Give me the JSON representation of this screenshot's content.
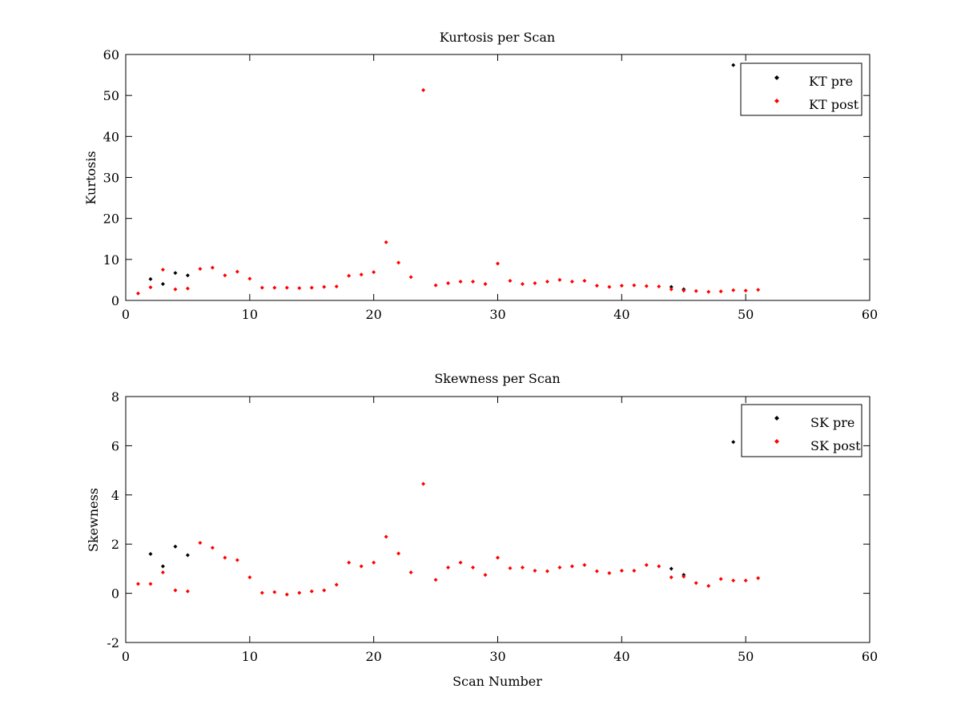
{
  "chart_data": [
    {
      "type": "scatter",
      "title": "Kurtosis per Scan",
      "xlabel": "",
      "ylabel": "Kurtosis",
      "xlim": [
        0,
        60
      ],
      "ylim": [
        0,
        60
      ],
      "xticks": [
        0,
        10,
        20,
        30,
        40,
        50,
        60
      ],
      "yticks": [
        0,
        10,
        20,
        30,
        40,
        50,
        60
      ],
      "grid": false,
      "legend_position": "top-right",
      "series": [
        {
          "name": "KT pre",
          "color": "#000000",
          "x": [
            2,
            3,
            4,
            5,
            44,
            45,
            49
          ],
          "y": [
            5.2,
            4.0,
            6.7,
            6.1,
            3.3,
            2.7,
            57.4
          ]
        },
        {
          "name": "KT post",
          "color": "#ff0000",
          "x": [
            1,
            2,
            3,
            4,
            5,
            6,
            7,
            8,
            9,
            10,
            11,
            12,
            13,
            14,
            15,
            16,
            17,
            18,
            19,
            20,
            21,
            22,
            23,
            24,
            25,
            26,
            27,
            28,
            29,
            30,
            31,
            32,
            33,
            34,
            35,
            36,
            37,
            38,
            39,
            40,
            41,
            42,
            43,
            44,
            45,
            46,
            47,
            48,
            49,
            50,
            51
          ],
          "y": [
            1.7,
            3.2,
            7.5,
            2.7,
            2.9,
            7.7,
            8.0,
            6.1,
            7.0,
            5.3,
            3.1,
            3.1,
            3.1,
            3.0,
            3.1,
            3.3,
            3.4,
            6.0,
            6.3,
            6.9,
            14.2,
            9.2,
            5.7,
            51.3,
            3.7,
            4.2,
            4.6,
            4.6,
            4.0,
            9.0,
            4.8,
            4.0,
            4.2,
            4.6,
            5.0,
            4.6,
            4.8,
            3.6,
            3.3,
            3.6,
            3.7,
            3.5,
            3.4,
            2.7,
            2.4,
            2.3,
            2.1,
            2.2,
            2.5,
            2.4,
            2.6
          ]
        }
      ]
    },
    {
      "type": "scatter",
      "title": "Skewness per Scan",
      "xlabel": "Scan Number",
      "ylabel": "Skewness",
      "xlim": [
        0,
        60
      ],
      "ylim": [
        -2,
        8
      ],
      "xticks": [
        0,
        10,
        20,
        30,
        40,
        50,
        60
      ],
      "yticks": [
        -2,
        0,
        2,
        4,
        6,
        8
      ],
      "grid": false,
      "legend_position": "top-right",
      "series": [
        {
          "name": "SK pre",
          "color": "#000000",
          "x": [
            2,
            3,
            4,
            5,
            44,
            45,
            49
          ],
          "y": [
            1.6,
            1.1,
            1.9,
            1.55,
            1.0,
            0.75,
            6.15
          ]
        },
        {
          "name": "SK post",
          "color": "#ff0000",
          "x": [
            1,
            2,
            3,
            4,
            5,
            6,
            7,
            8,
            9,
            10,
            11,
            12,
            13,
            14,
            15,
            16,
            17,
            18,
            19,
            20,
            21,
            22,
            23,
            24,
            25,
            26,
            27,
            28,
            29,
            30,
            31,
            32,
            33,
            34,
            35,
            36,
            37,
            38,
            39,
            40,
            41,
            42,
            43,
            44,
            45,
            46,
            47,
            48,
            49,
            50,
            51
          ],
          "y": [
            0.38,
            0.38,
            0.85,
            0.12,
            0.08,
            2.05,
            1.85,
            1.45,
            1.35,
            0.65,
            0.02,
            0.05,
            -0.05,
            0.02,
            0.08,
            0.12,
            0.35,
            1.25,
            1.1,
            1.25,
            2.3,
            1.62,
            0.85,
            4.45,
            0.55,
            1.05,
            1.25,
            1.05,
            0.75,
            1.45,
            1.02,
            1.05,
            0.92,
            0.9,
            1.05,
            1.1,
            1.15,
            0.9,
            0.82,
            0.92,
            0.92,
            1.15,
            1.1,
            0.65,
            0.68,
            0.42,
            0.3,
            0.58,
            0.52,
            0.52,
            0.62
          ]
        }
      ]
    }
  ]
}
